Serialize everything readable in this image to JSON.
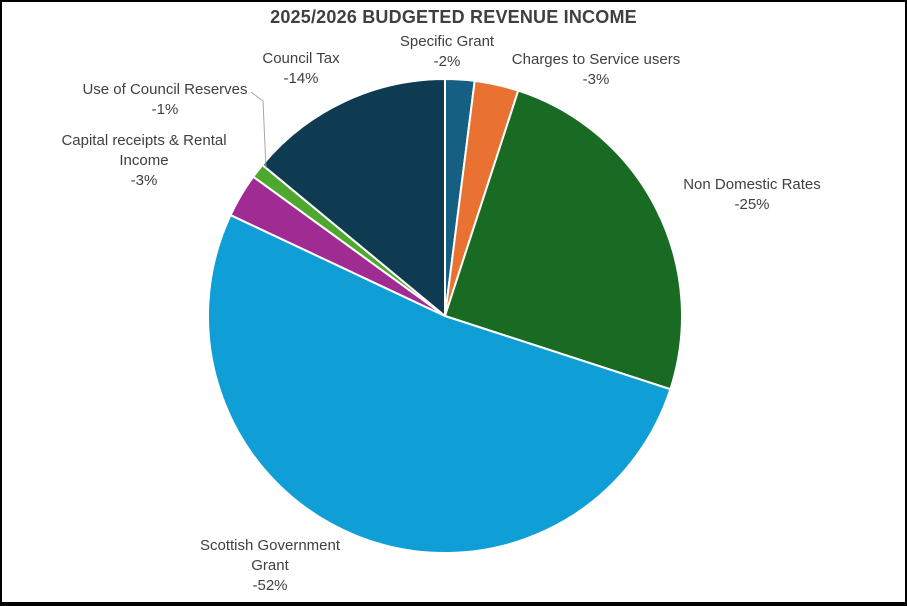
{
  "chart_data": {
    "type": "pie",
    "title": "2025/2026 BUDGETED REVENUE INCOME",
    "start_angle_deg": 0,
    "direction": "clockwise",
    "unit": "%",
    "slices": [
      {
        "label": "Specific Grant",
        "pct_label": "-2%",
        "value": 2,
        "color": "#156082"
      },
      {
        "label": "Charges to Service users",
        "pct_label": "-3%",
        "value": 3,
        "color": "#E97132"
      },
      {
        "label": "Non Domestic Rates",
        "pct_label": "-25%",
        "value": 25,
        "color": "#196B24"
      },
      {
        "label": "Scottish Government Grant",
        "pct_label": "-52%",
        "value": 52,
        "color": "#0F9ED5"
      },
      {
        "label": "Capital receipts & Rental Income",
        "pct_label": "-3%",
        "value": 3,
        "color": "#A02B93"
      },
      {
        "label": "Use of Council Reserves",
        "pct_label": "-1%",
        "value": 1,
        "color": "#4EA72E"
      },
      {
        "label": "Council Tax",
        "pct_label": "-14%",
        "value": 14,
        "color": "#0E3A52"
      }
    ],
    "style": {
      "slice_border_color": "#FFFFFF",
      "text_color": "#404040",
      "title_color": "#3F3F3F",
      "leader_line_color": "#A6A6A6",
      "legend": "none",
      "labels": "outside"
    }
  }
}
